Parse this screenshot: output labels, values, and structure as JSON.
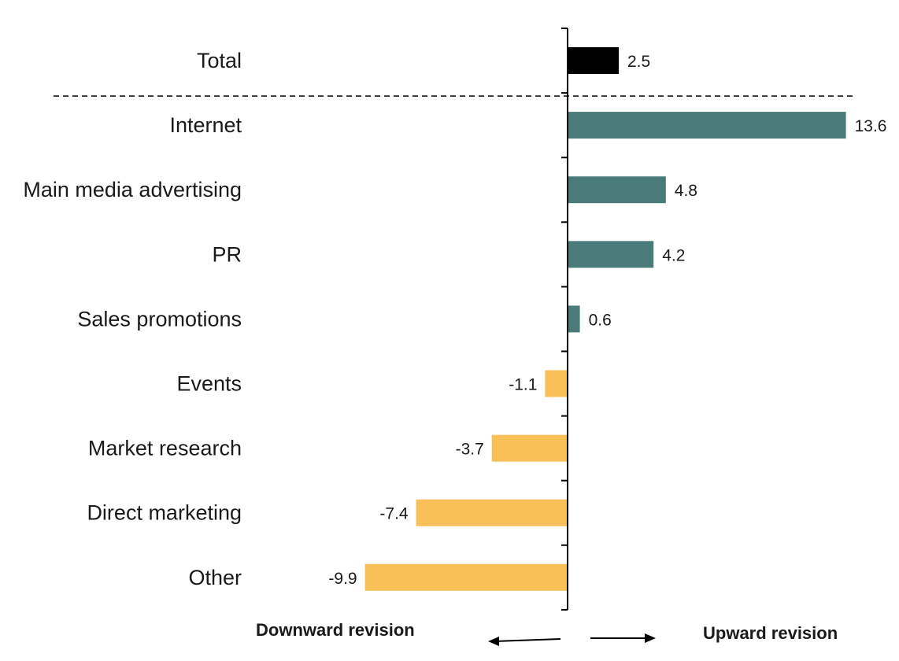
{
  "chart_data": {
    "type": "bar",
    "orientation": "horizontal",
    "categories": [
      "Total",
      "Internet",
      "Main media advertising",
      "PR",
      "Sales promotions",
      "Events",
      "Market research",
      "Direct marketing",
      "Other"
    ],
    "values": [
      2.5,
      13.6,
      4.8,
      4.2,
      0.6,
      -1.1,
      -3.7,
      -7.4,
      -9.9
    ],
    "value_labels": [
      "2.5",
      "13.6",
      "4.8",
      "4.2",
      "0.6",
      "-1.1",
      "-3.7",
      "-7.4",
      "-9.9"
    ],
    "xlim": [
      -10,
      14
    ],
    "grid": false,
    "separator_after": "Total",
    "direction_labels": {
      "left": "Downward revision",
      "right": "Upward revision"
    },
    "colors": {
      "total": "#000000",
      "positive": "#4a7b7b",
      "negative": "#f9bf58",
      "axis": "#000000",
      "separator": "#333333"
    }
  }
}
